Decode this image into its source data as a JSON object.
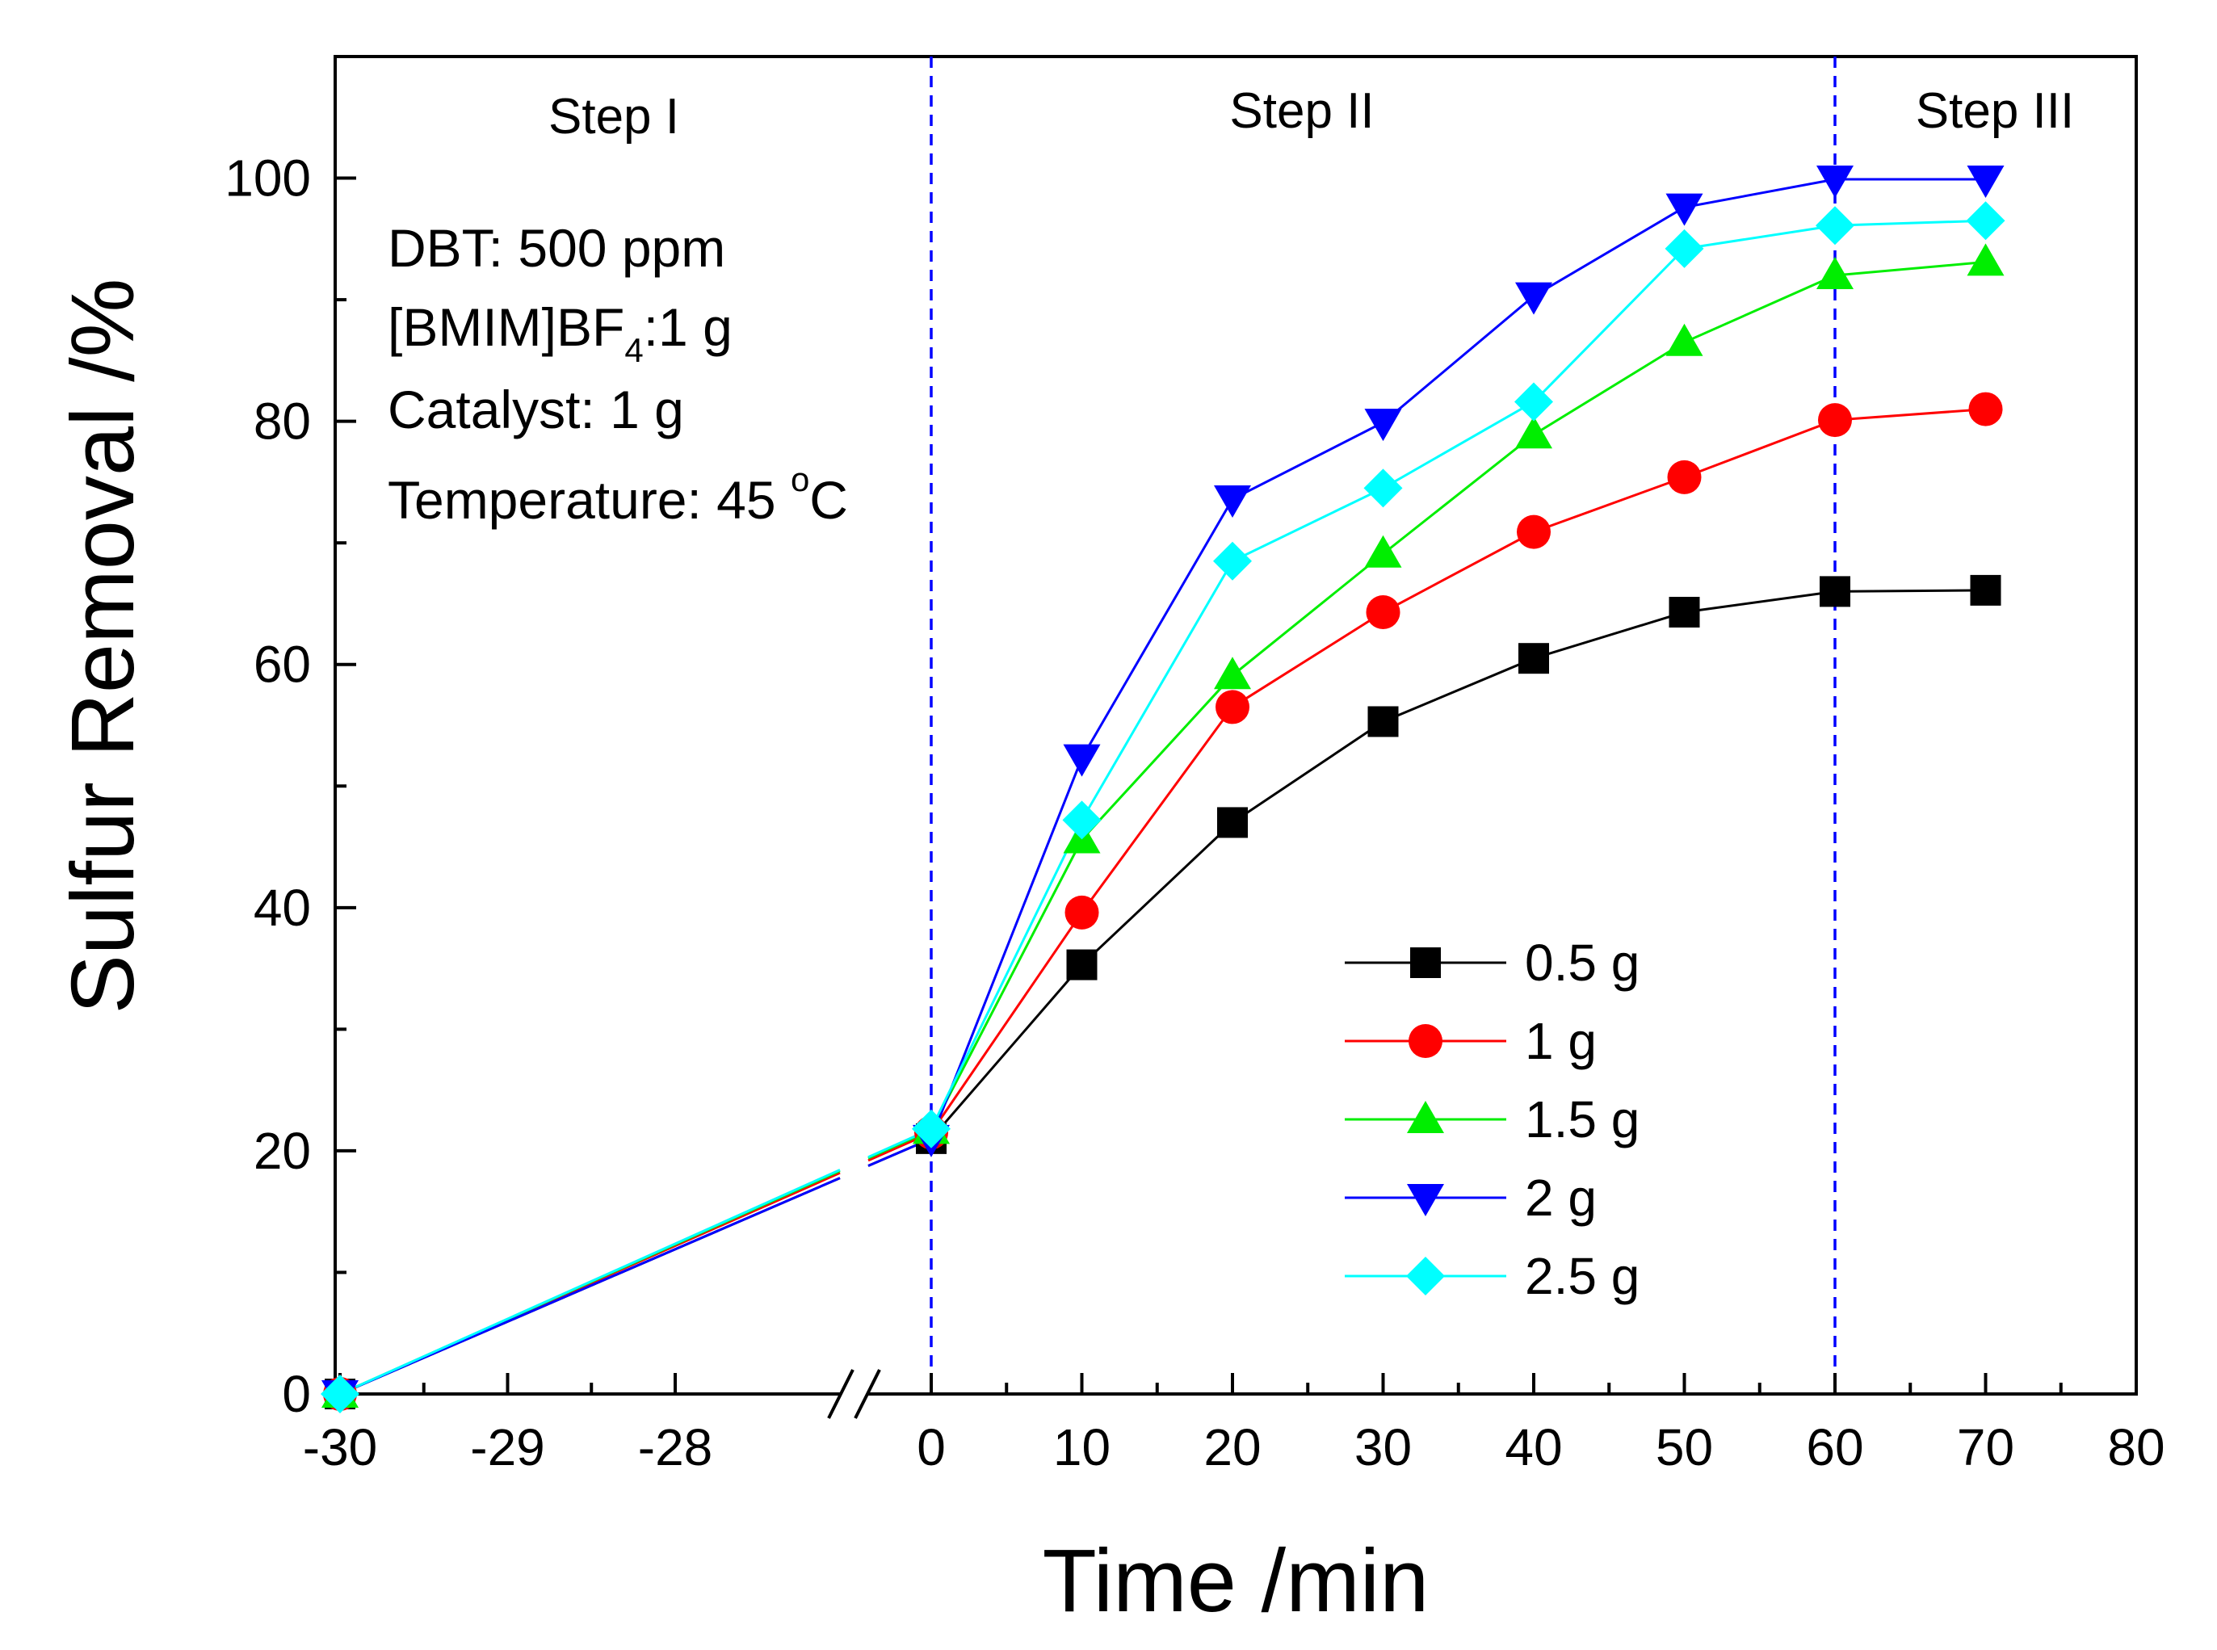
{
  "chart_data": {
    "type": "line",
    "title": "",
    "xlabel": "Time /min",
    "ylabel": "Sulfur Removal /%",
    "xlim_left_segment": [
      -30,
      -27
    ],
    "xlim_right_segment": [
      0,
      80
    ],
    "ylim": [
      0,
      110
    ],
    "x_break": true,
    "x_ticks": [
      "-30",
      "-29",
      "-28",
      "0",
      "10",
      "20",
      "30",
      "40",
      "50",
      "60",
      "70",
      "80"
    ],
    "y_ticks": [
      "0",
      "20",
      "40",
      "60",
      "80",
      "100"
    ],
    "x": [
      -30,
      0,
      10,
      20,
      30,
      40,
      50,
      60,
      70
    ],
    "series": [
      {
        "name": "0.5 g",
        "color": "#000000",
        "marker": "square",
        "values": [
          0,
          21,
          35.3,
          47.0,
          55.3,
          60.5,
          64.3,
          66.0,
          66.1
        ]
      },
      {
        "name": "1 g",
        "color": "#ff0000",
        "marker": "circle",
        "values": [
          0,
          21.5,
          39.6,
          56.5,
          64.3,
          70.9,
          75.4,
          80.1,
          81.0
        ]
      },
      {
        "name": "1.5 g",
        "color": "#00ee00",
        "marker": "triangle-up",
        "values": [
          0,
          21.7,
          45.6,
          59.1,
          69.1,
          78.9,
          86.5,
          92.0,
          93.1
        ]
      },
      {
        "name": "2 g",
        "color": "#0000ff",
        "marker": "triangle-down",
        "values": [
          0,
          21.0,
          52.3,
          73.6,
          79.9,
          90.3,
          97.6,
          99.9,
          99.9
        ]
      },
      {
        "name": "2.5 g",
        "color": "#00ffff",
        "marker": "diamond",
        "values": [
          0,
          21.8,
          47.2,
          68.5,
          74.5,
          81.6,
          94.2,
          96.1,
          96.5
        ]
      }
    ],
    "step_lines": [
      0,
      60
    ],
    "step_labels": [
      "Step I",
      "Step II",
      "Step III"
    ],
    "annotations": {
      "line1": "DBT: 500 ppm",
      "line2_prefix": "[BMIM]BF",
      "line2_sub": "4",
      "line2_suffix": ":1 g",
      "line3": "Catalyst: 1 g",
      "line4_prefix": "Temperature: 45 ",
      "line4_sup": "o",
      "line4_suffix": "C"
    },
    "legend_placement": "bottom-right",
    "grid": false
  }
}
